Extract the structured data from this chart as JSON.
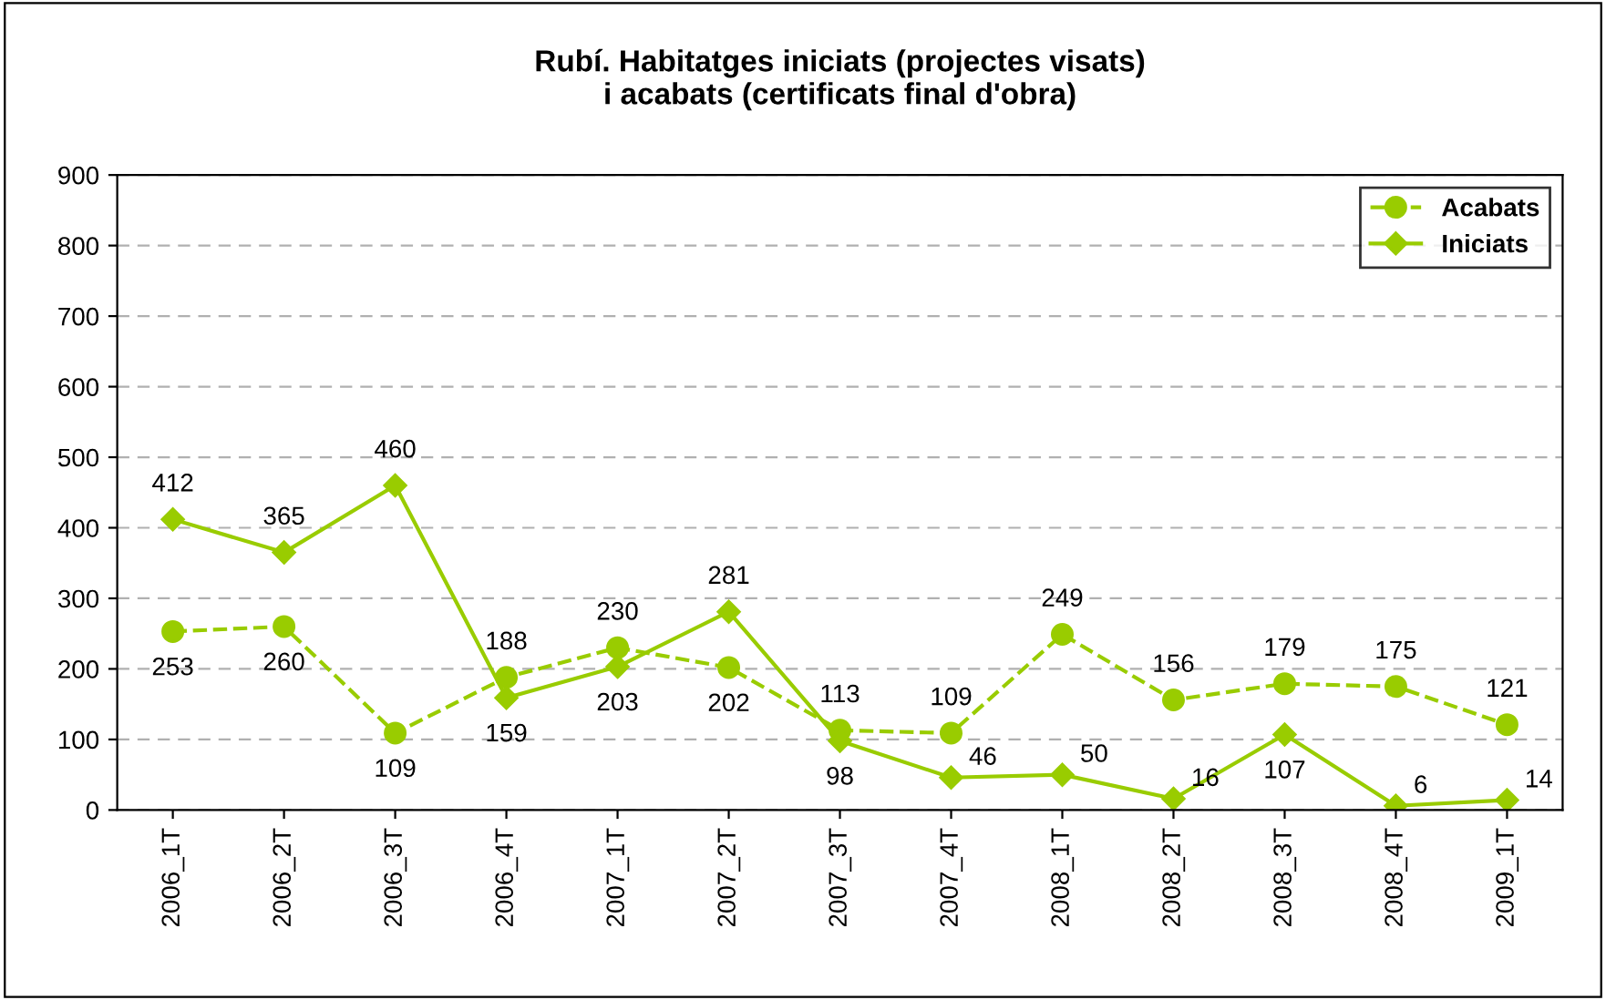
{
  "chart_data": {
    "type": "line",
    "title": "Rubí. Habitatges iniciats (projectes visats)\ni acabats (certificats final d'obra)",
    "categories": [
      "2006_1T",
      "2006_2T",
      "2006_3T",
      "2006_4T",
      "2007_1T",
      "2007_2T",
      "2007_3T",
      "2007_4T",
      "2008_1T",
      "2008_2T",
      "2008_3T",
      "2008_4T",
      "2009_1T"
    ],
    "series": [
      {
        "name": "Acabats",
        "color": "#99cc00",
        "marker": "circle",
        "line_style": "dashed",
        "values": [
          253,
          260,
          109,
          188,
          230,
          202,
          113,
          109,
          249,
          156,
          179,
          175,
          121
        ]
      },
      {
        "name": "Iniciats",
        "color": "#99cc00",
        "marker": "diamond",
        "line_style": "solid",
        "values": [
          412,
          365,
          460,
          159,
          203,
          281,
          98,
          46,
          50,
          16,
          107,
          6,
          14
        ]
      }
    ],
    "ylim": [
      0,
      900
    ],
    "yticks": [
      0,
      100,
      200,
      300,
      400,
      500,
      600,
      700,
      800,
      900
    ],
    "grid": "y",
    "legend": "top right",
    "data_labels": true
  }
}
